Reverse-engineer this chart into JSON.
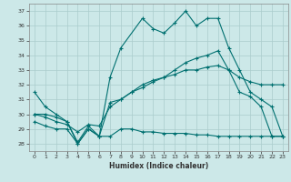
{
  "title": "",
  "xlabel": "Humidex (Indice chaleur)",
  "ylabel": "",
  "bg_color": "#cce8e8",
  "grid_color": "#aacccc",
  "line_color": "#007070",
  "xlim": [
    -0.5,
    23.5
  ],
  "ylim": [
    27.5,
    37.5
  ],
  "xticks": [
    0,
    1,
    2,
    3,
    4,
    5,
    6,
    7,
    8,
    9,
    10,
    11,
    12,
    13,
    14,
    15,
    16,
    17,
    18,
    19,
    20,
    21,
    22,
    23
  ],
  "yticks": [
    28,
    29,
    30,
    31,
    32,
    33,
    34,
    35,
    36,
    37
  ],
  "s1_x": [
    0,
    1,
    2,
    3,
    4,
    5,
    6,
    7,
    8,
    10,
    11,
    12,
    13,
    14,
    15,
    16,
    17,
    18,
    19,
    20,
    21,
    22,
    23
  ],
  "s1_y": [
    31.5,
    30.5,
    30.0,
    29.5,
    28.0,
    29.0,
    28.5,
    32.5,
    34.5,
    36.5,
    35.8,
    35.5,
    36.2,
    37.0,
    36.0,
    36.5,
    36.5,
    34.5,
    33.0,
    31.5,
    31.0,
    30.5,
    28.5
  ],
  "s2_x": [
    0,
    1,
    2,
    3,
    4,
    5,
    6,
    7,
    8,
    9,
    10,
    11,
    12,
    13,
    14,
    15,
    16,
    17,
    18,
    19,
    20,
    21,
    22,
    23
  ],
  "s2_y": [
    30.0,
    30.0,
    29.8,
    29.5,
    28.1,
    29.2,
    28.5,
    30.8,
    31.0,
    31.5,
    31.8,
    32.2,
    32.5,
    33.0,
    33.5,
    33.8,
    34.0,
    34.3,
    33.0,
    31.5,
    31.2,
    30.5,
    28.5,
    28.5
  ],
  "s3_x": [
    0,
    1,
    2,
    3,
    4,
    5,
    6,
    7,
    8,
    9,
    10,
    11,
    12,
    13,
    14,
    15,
    16,
    17,
    18,
    19,
    20,
    21,
    22,
    23
  ],
  "s3_y": [
    30.0,
    29.8,
    29.5,
    29.3,
    28.8,
    29.3,
    29.2,
    30.5,
    31.0,
    31.5,
    32.0,
    32.3,
    32.5,
    32.7,
    33.0,
    33.0,
    33.2,
    33.3,
    33.0,
    32.5,
    32.2,
    32.0,
    32.0,
    32.0
  ],
  "s4_x": [
    0,
    1,
    2,
    3,
    4,
    5,
    6,
    7,
    8,
    9,
    10,
    11,
    12,
    13,
    14,
    15,
    16,
    17,
    18,
    19,
    20,
    21,
    22,
    23
  ],
  "s4_y": [
    29.5,
    29.2,
    29.0,
    29.0,
    28.0,
    29.0,
    28.5,
    28.5,
    29.0,
    29.0,
    28.8,
    28.8,
    28.7,
    28.7,
    28.7,
    28.6,
    28.6,
    28.5,
    28.5,
    28.5,
    28.5,
    28.5,
    28.5,
    28.5
  ]
}
